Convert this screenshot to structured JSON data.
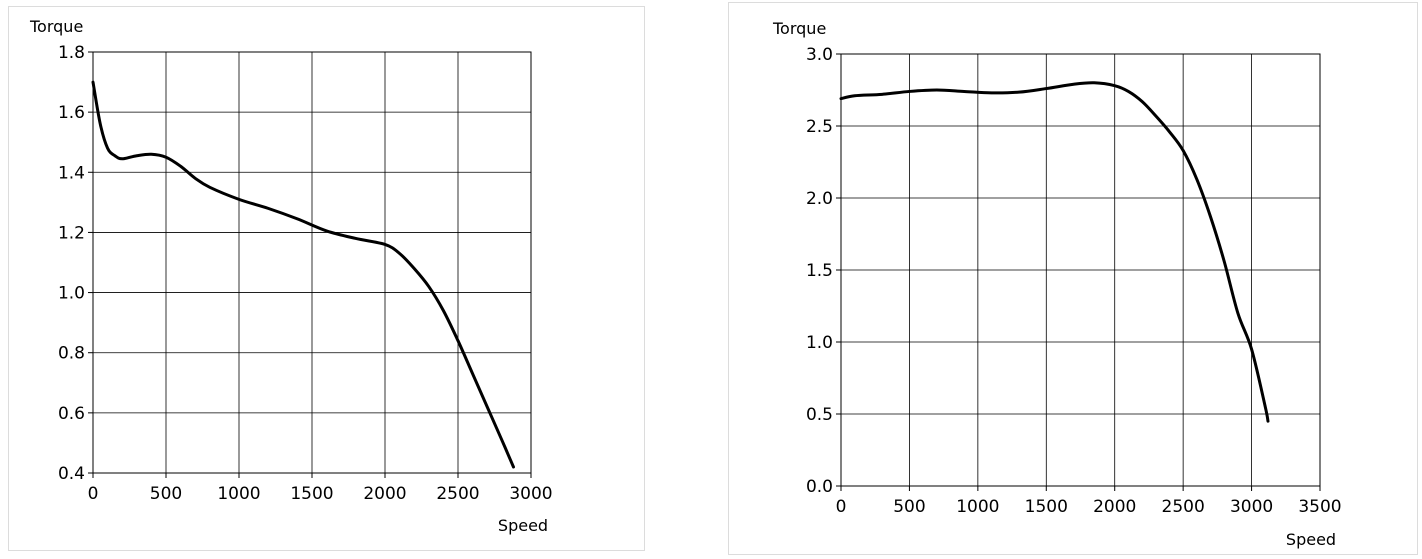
{
  "chart_data": [
    {
      "type": "line",
      "title": "",
      "xlabel": "Speed",
      "ylabel": "Torque",
      "xlim": [
        0,
        3000
      ],
      "ylim": [
        0.4,
        1.8
      ],
      "x_ticks": [
        0,
        500,
        1000,
        1500,
        2000,
        2500,
        3000
      ],
      "y_ticks": [
        0.4,
        0.6,
        0.8,
        1.0,
        1.2,
        1.4,
        1.6,
        1.8
      ],
      "x_tick_labels": [
        "0",
        "500",
        "1000",
        "1500",
        "2000",
        "2500",
        "3000"
      ],
      "y_tick_labels": [
        "0.4",
        "0.6",
        "0.8",
        "1.0",
        "1.2",
        "1.4",
        "1.6",
        "1.8"
      ],
      "grid": true,
      "series": [
        {
          "color": "#000000",
          "x": [
            0,
            50,
            100,
            150,
            200,
            300,
            400,
            500,
            600,
            700,
            800,
            1000,
            1200,
            1400,
            1600,
            1800,
            2000,
            2100,
            2200,
            2300,
            2400,
            2500,
            2600,
            2700,
            2800,
            2880
          ],
          "y": [
            1.7,
            1.56,
            1.48,
            1.455,
            1.445,
            1.455,
            1.46,
            1.45,
            1.42,
            1.38,
            1.35,
            1.31,
            1.28,
            1.245,
            1.205,
            1.18,
            1.16,
            1.13,
            1.08,
            1.02,
            0.94,
            0.84,
            0.73,
            0.62,
            0.51,
            0.42
          ]
        }
      ]
    },
    {
      "type": "line",
      "title": "",
      "xlabel": "Speed",
      "ylabel": "Torque",
      "xlim": [
        0,
        3500
      ],
      "ylim": [
        0,
        3.0
      ],
      "x_ticks": [
        0,
        500,
        1000,
        1500,
        2000,
        2500,
        3000,
        3500
      ],
      "y_ticks": [
        0,
        0.5,
        1.0,
        1.5,
        2.0,
        2.5,
        3.0
      ],
      "x_tick_labels": [
        "0",
        "500",
        "1000",
        "1500",
        "2000",
        "2500",
        "3000",
        "3500"
      ],
      "y_tick_labels": [
        "0.0",
        "0.5",
        "1.0",
        "1.5",
        "2.0",
        "2.5",
        "3.0"
      ],
      "grid": true,
      "series": [
        {
          "color": "#000000",
          "x": [
            0,
            100,
            300,
            500,
            700,
            900,
            1100,
            1300,
            1500,
            1700,
            1850,
            2000,
            2100,
            2200,
            2300,
            2400,
            2500,
            2600,
            2700,
            2800,
            2900,
            3000,
            3100,
            3120
          ],
          "y": [
            2.69,
            2.71,
            2.72,
            2.74,
            2.75,
            2.74,
            2.73,
            2.735,
            2.76,
            2.79,
            2.8,
            2.78,
            2.74,
            2.67,
            2.57,
            2.46,
            2.33,
            2.13,
            1.87,
            1.56,
            1.2,
            0.95,
            0.55,
            0.45
          ]
        }
      ]
    }
  ]
}
